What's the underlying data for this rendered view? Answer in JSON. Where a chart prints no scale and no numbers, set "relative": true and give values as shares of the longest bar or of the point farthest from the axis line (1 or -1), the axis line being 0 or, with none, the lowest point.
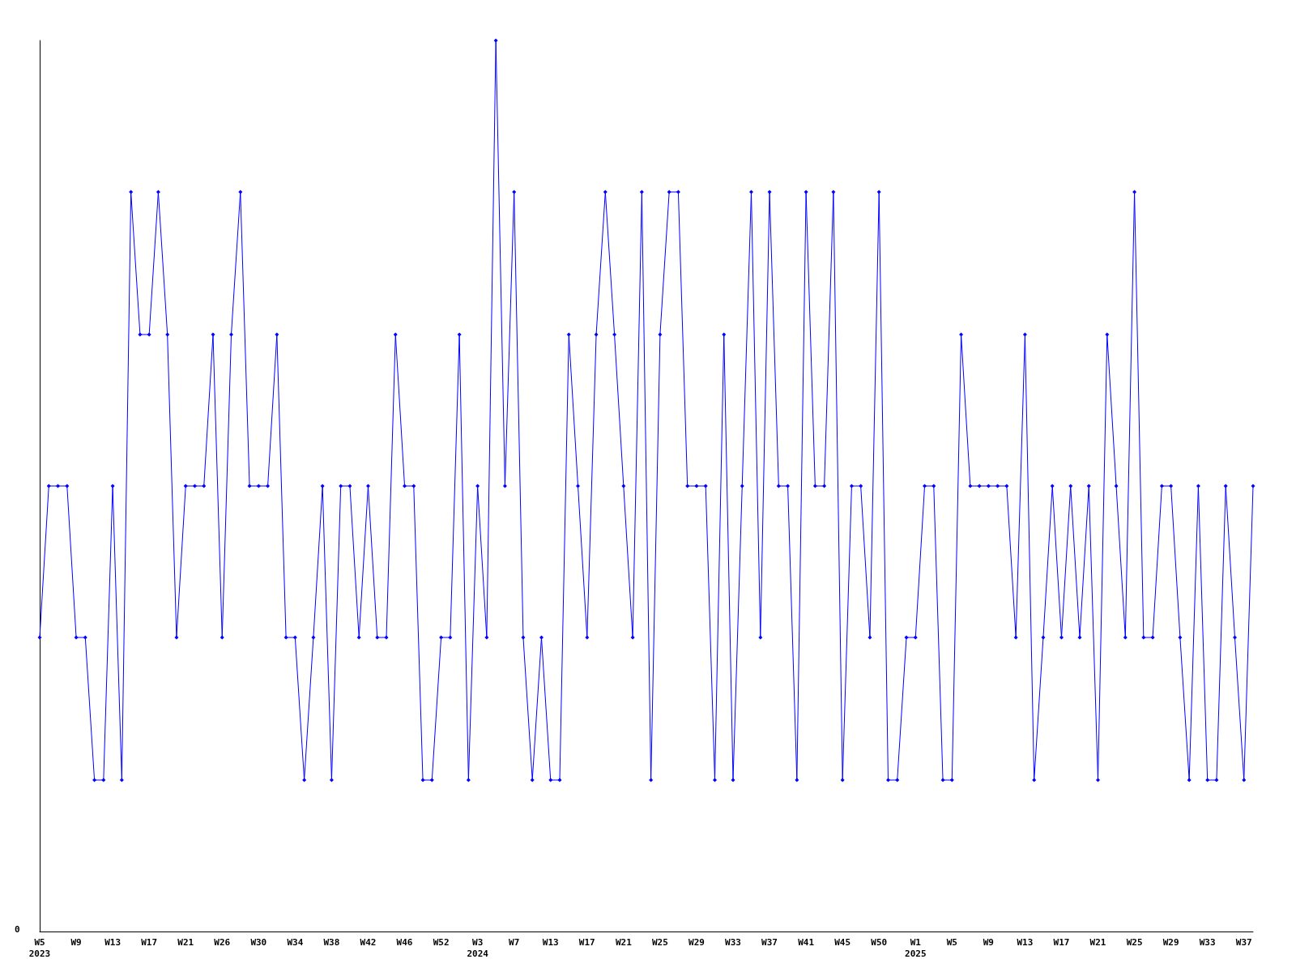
{
  "chart_data": {
    "type": "line",
    "relative": true,
    "annotations": [
      "0"
    ],
    "marker": "diamond",
    "line_style": "solid",
    "grid": false,
    "categories": [
      "W5\n2023",
      null,
      null,
      null,
      "W9",
      null,
      null,
      null,
      "W13",
      null,
      null,
      null,
      "W17",
      null,
      null,
      null,
      "W21",
      null,
      null,
      null,
      "W26",
      null,
      null,
      null,
      "W30",
      null,
      null,
      null,
      "W34",
      null,
      null,
      null,
      "W38",
      null,
      null,
      null,
      "W42",
      null,
      null,
      null,
      "W46",
      null,
      null,
      null,
      "W52",
      null,
      null,
      null,
      "W3\n2024",
      null,
      null,
      null,
      "W7",
      null,
      null,
      null,
      "W13",
      null,
      null,
      null,
      "W17",
      null,
      null,
      null,
      "W21",
      null,
      null,
      null,
      "W25",
      null,
      null,
      null,
      "W29",
      null,
      null,
      null,
      "W33",
      null,
      null,
      null,
      "W37",
      null,
      null,
      null,
      "W41",
      null,
      null,
      null,
      "W45",
      null,
      null,
      null,
      "W50",
      null,
      null,
      null,
      "W1\n2025",
      null,
      null,
      null,
      "W5",
      null,
      null,
      null,
      "W9",
      null,
      null,
      null,
      "W13",
      null,
      null,
      null,
      "W17",
      null,
      null,
      null,
      "W21",
      null,
      null,
      null,
      "W25",
      null,
      null,
      null,
      "W29",
      null,
      null,
      null,
      "W33",
      null,
      null,
      null,
      "W37",
      null
    ],
    "series": [
      {
        "color": "#0000ff",
        "values": [
          0.33,
          0.5,
          0.5,
          0.5,
          0.33,
          0.33,
          0.17,
          0.17,
          0.5,
          0.17,
          0.83,
          0.67,
          0.67,
          0.83,
          0.67,
          0.33,
          0.5,
          0.5,
          0.5,
          0.67,
          0.33,
          0.67,
          0.83,
          0.5,
          0.5,
          0.5,
          0.67,
          0.33,
          0.33,
          0.17,
          0.33,
          0.5,
          0.17,
          0.5,
          0.5,
          0.33,
          0.5,
          0.33,
          0.33,
          0.67,
          0.5,
          0.5,
          0.17,
          0.17,
          0.33,
          0.33,
          0.67,
          0.17,
          0.5,
          0.33,
          1,
          0.5,
          0.83,
          0.33,
          0.17,
          0.33,
          0.17,
          0.17,
          0.67,
          0.5,
          0.33,
          0.67,
          0.83,
          0.67,
          0.5,
          0.33,
          0.83,
          0.17,
          0.67,
          0.83,
          0.83,
          0.5,
          0.5,
          0.5,
          0.17,
          0.67,
          0.17,
          0.5,
          0.83,
          0.33,
          0.83,
          0.5,
          0.5,
          0.17,
          0.83,
          0.5,
          0.5,
          0.83,
          0.17,
          0.5,
          0.5,
          0.33,
          0.83,
          0.17,
          0.17,
          0.33,
          0.33,
          0.5,
          0.5,
          0.17,
          0.17,
          0.67,
          0.5,
          0.5,
          0.5,
          0.5,
          0.5,
          0.33,
          0.67,
          0.17,
          0.33,
          0.5,
          0.33,
          0.5,
          0.33,
          0.5,
          0.17,
          0.67,
          0.5,
          0.33,
          0.83,
          0.33,
          0.33,
          0.5,
          0.5,
          0.33,
          0.17,
          0.5,
          0.17,
          0.17,
          0.5,
          0.33,
          0.17,
          0.5
        ]
      }
    ]
  }
}
